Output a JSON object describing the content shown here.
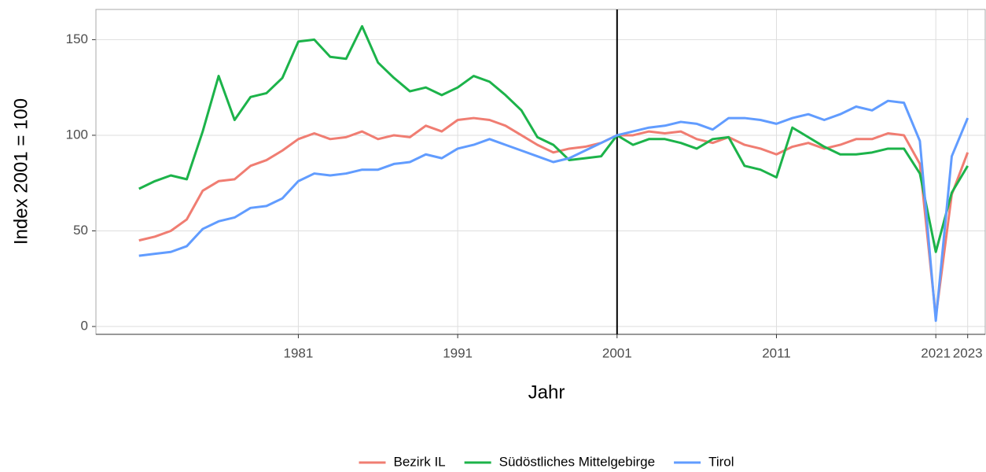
{
  "chart_data": {
    "type": "line",
    "x_label": "Jahr",
    "y_label": "Index 2001 = 100",
    "x": [
      1971,
      1972,
      1973,
      1974,
      1975,
      1976,
      1977,
      1978,
      1979,
      1980,
      1981,
      1982,
      1983,
      1984,
      1985,
      1986,
      1987,
      1988,
      1989,
      1990,
      1991,
      1992,
      1993,
      1994,
      1995,
      1996,
      1997,
      1998,
      1999,
      2000,
      2001,
      2002,
      2003,
      2004,
      2005,
      2006,
      2007,
      2008,
      2009,
      2010,
      2011,
      2012,
      2013,
      2014,
      2015,
      2016,
      2017,
      2018,
      2019,
      2020,
      2021,
      2022,
      2023
    ],
    "series": [
      {
        "name": "Bezirk IL",
        "color": "#f07d72",
        "values": [
          45,
          47,
          50,
          56,
          71,
          76,
          77,
          84,
          87,
          92,
          98,
          101,
          98,
          99,
          102,
          98,
          100,
          99,
          105,
          102,
          108,
          109,
          108,
          105,
          100,
          95,
          91,
          93,
          94,
          96,
          100,
          100,
          102,
          101,
          102,
          98,
          96,
          99,
          95,
          93,
          90,
          94,
          96,
          93,
          95,
          98,
          98,
          101,
          100,
          85,
          5,
          69,
          91
        ]
      },
      {
        "name": "Südöstliches Mittelgebirge",
        "color": "#1cb34a",
        "values": [
          72,
          76,
          79,
          77,
          102,
          131,
          108,
          120,
          122,
          130,
          149,
          150,
          141,
          140,
          157,
          138,
          130,
          123,
          125,
          121,
          125,
          131,
          128,
          121,
          113,
          99,
          95,
          87,
          88,
          89,
          100,
          95,
          98,
          98,
          96,
          93,
          98,
          99,
          84,
          82,
          78,
          104,
          99,
          94,
          90,
          90,
          91,
          93,
          93,
          80,
          39,
          70,
          84
        ]
      },
      {
        "name": "Tirol",
        "color": "#619cff",
        "values": [
          37,
          38,
          39,
          42,
          51,
          55,
          57,
          62,
          63,
          67,
          76,
          80,
          79,
          80,
          82,
          82,
          85,
          86,
          90,
          88,
          93,
          95,
          98,
          95,
          92,
          89,
          86,
          88,
          92,
          96,
          100,
          102,
          104,
          105,
          107,
          106,
          103,
          109,
          109,
          108,
          106,
          109,
          111,
          108,
          111,
          115,
          113,
          118,
          117,
          97,
          3,
          89,
          109
        ]
      }
    ],
    "xlim": [
      1968.3,
      2024.1
    ],
    "xticks": [
      1981,
      1991,
      2001,
      2011,
      2021,
      2023
    ],
    "ylim": [
      -4.1,
      165.8
    ],
    "yticks": [
      0,
      50,
      100,
      150
    ],
    "vline": 2001,
    "grid": true,
    "legend": "bottom"
  }
}
